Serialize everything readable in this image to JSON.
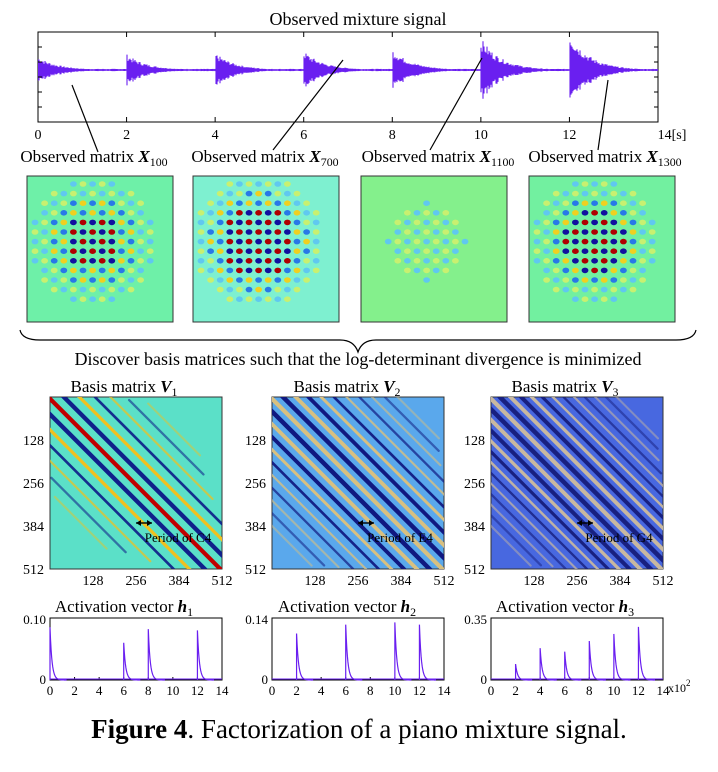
{
  "waveform": {
    "title": "Observed mixture signal",
    "x_ticks": [
      "0",
      "2",
      "4",
      "6",
      "8",
      "10",
      "12",
      "14[s]"
    ],
    "onsets_s": [
      0,
      2,
      4,
      6,
      8,
      10,
      12
    ],
    "onset_amplitudes": [
      0.35,
      0.42,
      0.45,
      0.5,
      0.55,
      0.85,
      1.0
    ],
    "color": "#6a1ff0"
  },
  "observed": {
    "prefix": "Observed matrix",
    "symbol": "X",
    "subscripts": [
      "100",
      "700",
      "1100",
      "1300"
    ],
    "intensity": [
      0.8,
      1.0,
      0.25,
      0.9
    ]
  },
  "bridge_text": "Discover basis matrices such that the log-determinant divergence is minimized",
  "basis": {
    "prefix": "Basis matrix",
    "symbol": "V",
    "subscripts": [
      "1",
      "2",
      "3"
    ],
    "tick_labels": [
      "128",
      "256",
      "384",
      "512"
    ],
    "period_labels": [
      "Period of C4",
      "Period of E4",
      "Period of G4"
    ],
    "backgrounds": [
      "#5be0c8",
      "#5aa8ec",
      "#4868e0"
    ]
  },
  "activations": {
    "prefix": "Activation vector",
    "symbol": "h",
    "subscripts": [
      "1",
      "2",
      "3"
    ],
    "x_ticks": [
      "0",
      "2",
      "4",
      "6",
      "8",
      "10",
      "12",
      "14"
    ],
    "x_unit": "x10",
    "x_unit_exp": "2",
    "y_min_label": "0",
    "color": "#6a1ff0"
  },
  "chart_data": [
    {
      "type": "line",
      "title": "Activation vector h1",
      "ylim": [
        0,
        0.1
      ],
      "y_ticks": [
        "0",
        "0.10"
      ],
      "x": [
        0,
        2,
        4,
        6,
        8,
        10,
        12,
        14
      ],
      "spikes": [
        {
          "x": 0,
          "y": 0.085
        },
        {
          "x": 6,
          "y": 0.06
        },
        {
          "x": 8,
          "y": 0.082
        },
        {
          "x": 12,
          "y": 0.08
        }
      ]
    },
    {
      "type": "line",
      "title": "Activation vector h2",
      "ylim": [
        0,
        0.14
      ],
      "y_ticks": [
        "0",
        "0.14"
      ],
      "spikes": [
        {
          "x": 2,
          "y": 0.105
        },
        {
          "x": 6,
          "y": 0.125
        },
        {
          "x": 10,
          "y": 0.13
        },
        {
          "x": 12,
          "y": 0.125
        }
      ]
    },
    {
      "type": "line",
      "title": "Activation vector h3",
      "ylim": [
        0,
        0.35
      ],
      "y_ticks": [
        "0",
        "0.35"
      ],
      "spikes": [
        {
          "x": 2,
          "y": 0.09
        },
        {
          "x": 4,
          "y": 0.18
        },
        {
          "x": 6,
          "y": 0.16
        },
        {
          "x": 8,
          "y": 0.22
        },
        {
          "x": 10,
          "y": 0.26
        },
        {
          "x": 12,
          "y": 0.3
        }
      ]
    }
  ],
  "caption": {
    "label": "Figure 4",
    "text": ". Factorization of a piano mixture signal."
  }
}
